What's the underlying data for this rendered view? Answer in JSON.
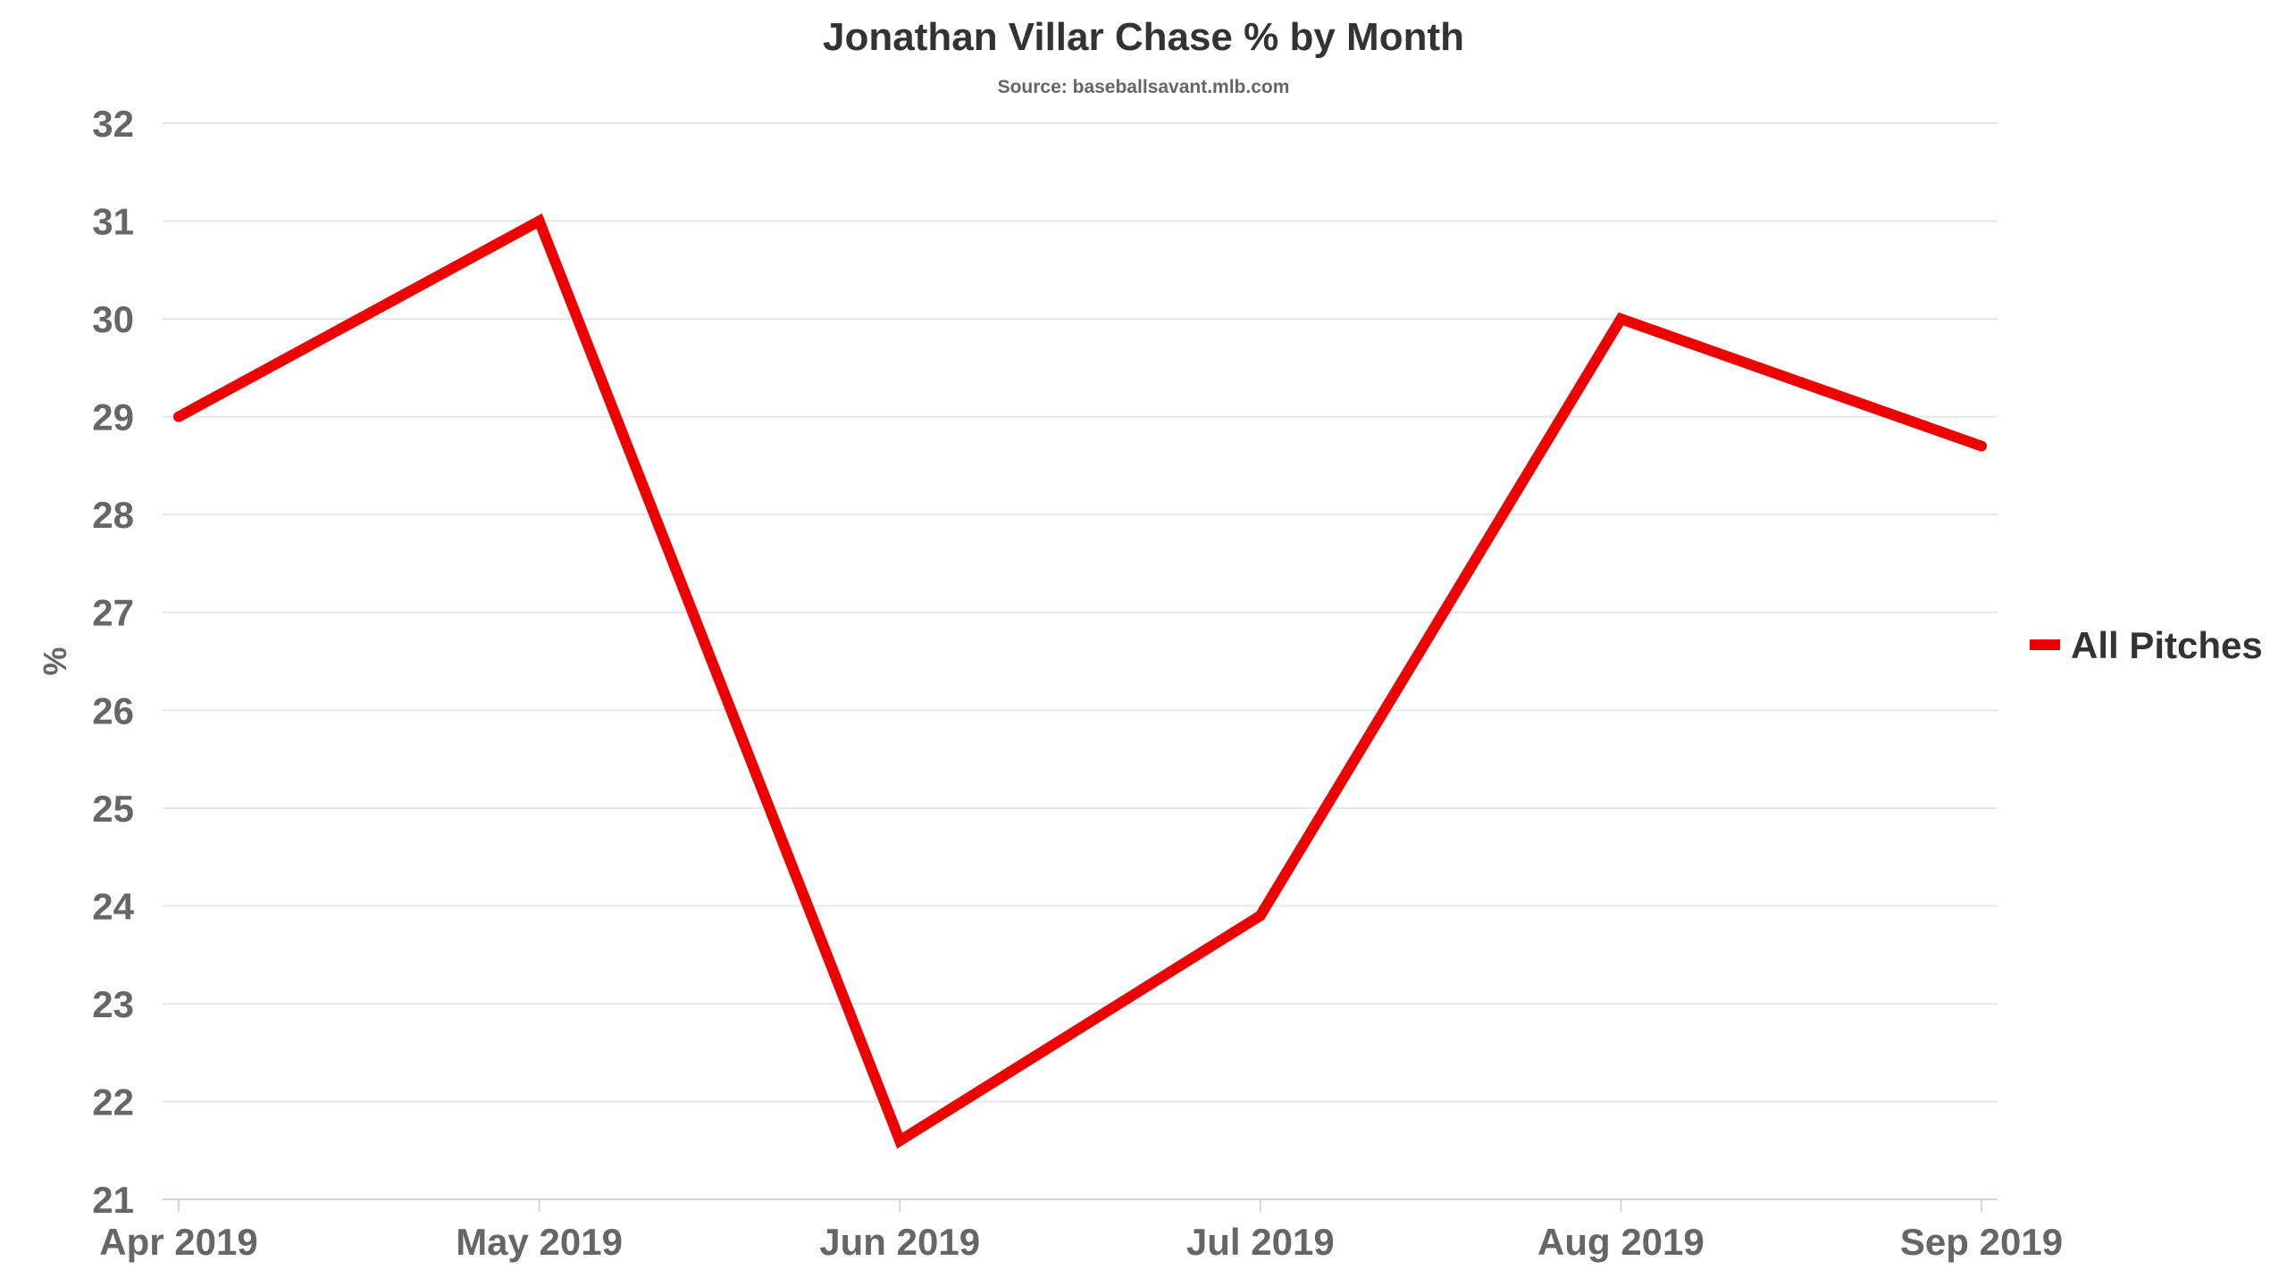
{
  "chart_data": {
    "type": "line",
    "title": "Jonathan Villar Chase % by Month",
    "subtitle": "Source: baseballsavant.mlb.com",
    "xlabel": "",
    "ylabel": "%",
    "categories": [
      "Apr 2019",
      "May 2019",
      "Jun 2019",
      "Jul 2019",
      "Aug 2019",
      "Sep 2019"
    ],
    "series": [
      {
        "name": "All Pitches",
        "color": "#ee0000",
        "values": [
          29.0,
          31.0,
          21.6,
          23.9,
          30.0,
          28.7
        ]
      }
    ],
    "ylim": [
      21,
      32
    ],
    "yticks": [
      "21",
      "22",
      "23",
      "24",
      "25",
      "26",
      "27",
      "28",
      "29",
      "30",
      "31",
      "32"
    ],
    "grid": true,
    "legend_position": "right"
  }
}
